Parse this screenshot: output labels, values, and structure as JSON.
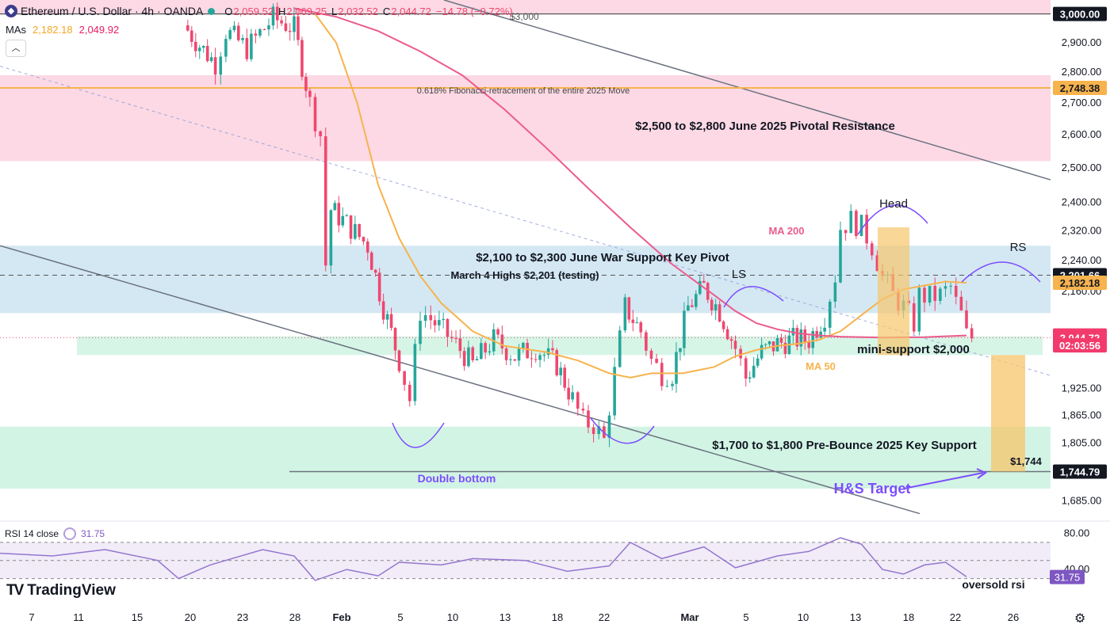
{
  "header": {
    "symbol": "Ethereum / U.S. Dollar · 4h · OANDA",
    "o_label": "O",
    "o_value": "2,059.52",
    "h_label": "H",
    "h_value": "2,069.25",
    "l_label": "L",
    "l_value": "2,032.52",
    "c_label": "C",
    "c_value": "2,044.72",
    "change": "−14.78 (−0.72%)"
  },
  "mas": {
    "label": "MAs",
    "ma50_value": "2,182.18",
    "ma200_value": "2,049.92"
  },
  "collapse_icon": "chevron-up-icon",
  "rsi_legend": {
    "label": "RSI 14 close",
    "value": "31.75"
  },
  "branding": {
    "logo_text": "TradingView"
  },
  "settings_icon": "gear-icon",
  "colors": {
    "up": "#26a69a",
    "down": "#ef476f",
    "ma50": "#f7b34d",
    "ma200": "#ec5b8d",
    "resistance_zone": "#fcd9e4",
    "war_zone": "#d4e8f3",
    "green_zone": "#d2f4e4",
    "annotation_purple": "#7c4dff",
    "rsi": "#9575cd"
  },
  "chart_data": {
    "type": "candlestick",
    "title": "Ethereum / U.S. Dollar · 4h · OANDA",
    "y_axis": {
      "ticks": [
        "3,000.00",
        "2,900.00",
        "2,800.00",
        "2,700.00",
        "2,600.00",
        "2,500.00",
        "2,400.00",
        "2,320.00",
        "2,240.00",
        "2,160.00",
        "1,925.00",
        "1,865.00",
        "1,805.00",
        "1,685.00"
      ],
      "scale": "log",
      "range": [
        1650,
        3050
      ]
    },
    "x_axis": {
      "ticks": [
        "7",
        "11",
        "15",
        "20",
        "23",
        "28",
        "Feb",
        "5",
        "10",
        "13",
        "18",
        "22",
        "Mar",
        "5",
        "10",
        "13",
        "18",
        "22",
        "26"
      ]
    },
    "price_path": [
      [
        0.175,
        2960
      ],
      [
        0.19,
        2890
      ],
      [
        0.205,
        2830
      ],
      [
        0.215,
        2940
      ],
      [
        0.235,
        2880
      ],
      [
        0.26,
        2985
      ],
      [
        0.28,
        2950
      ],
      [
        0.295,
        2700
      ],
      [
        0.305,
        2600
      ],
      [
        0.31,
        2230
      ],
      [
        0.315,
        2380
      ],
      [
        0.33,
        2340
      ],
      [
        0.35,
        2280
      ],
      [
        0.365,
        2120
      ],
      [
        0.38,
        1990
      ],
      [
        0.39,
        1900
      ],
      [
        0.4,
        2110
      ],
      [
        0.41,
        2090
      ],
      [
        0.43,
        2040
      ],
      [
        0.45,
        1980
      ],
      [
        0.47,
        2040
      ],
      [
        0.49,
        2000
      ],
      [
        0.51,
        2020
      ],
      [
        0.53,
        1980
      ],
      [
        0.545,
        1900
      ],
      [
        0.555,
        1850
      ],
      [
        0.565,
        1845
      ],
      [
        0.575,
        1810
      ],
      [
        0.585,
        1960
      ],
      [
        0.595,
        2120
      ],
      [
        0.61,
        2060
      ],
      [
        0.62,
        1990
      ],
      [
        0.63,
        1960
      ],
      [
        0.64,
        1960
      ],
      [
        0.655,
        2120
      ],
      [
        0.67,
        2170
      ],
      [
        0.685,
        2110
      ],
      [
        0.7,
        2020
      ],
      [
        0.71,
        1950
      ],
      [
        0.725,
        2010
      ],
      [
        0.74,
        2030
      ],
      [
        0.755,
        2040
      ],
      [
        0.77,
        2040
      ],
      [
        0.785,
        2100
      ],
      [
        0.795,
        2200
      ],
      [
        0.8,
        2330
      ],
      [
        0.81,
        2350
      ],
      [
        0.82,
        2330
      ],
      [
        0.83,
        2280
      ],
      [
        0.84,
        2200
      ],
      [
        0.85,
        2150
      ],
      [
        0.86,
        2120
      ],
      [
        0.87,
        2080
      ],
      [
        0.875,
        2150
      ],
      [
        0.885,
        2145
      ],
      [
        0.895,
        2150
      ],
      [
        0.905,
        2170
      ],
      [
        0.91,
        2130
      ],
      [
        0.915,
        2100
      ],
      [
        0.92,
        2050
      ],
      [
        0.925,
        2044.72
      ]
    ],
    "moving_averages": [
      {
        "name": "MA 50",
        "value": "2,182.18",
        "points": [
          [
            0.3,
            3000
          ],
          [
            0.32,
            2900
          ],
          [
            0.34,
            2700
          ],
          [
            0.36,
            2450
          ],
          [
            0.38,
            2300
          ],
          [
            0.4,
            2200
          ],
          [
            0.42,
            2130
          ],
          [
            0.45,
            2060
          ],
          [
            0.48,
            2025
          ],
          [
            0.52,
            2010
          ],
          [
            0.55,
            1990
          ],
          [
            0.58,
            1960
          ],
          [
            0.6,
            1950
          ],
          [
            0.62,
            1960
          ],
          [
            0.65,
            1960
          ],
          [
            0.68,
            1975
          ],
          [
            0.7,
            2000
          ],
          [
            0.72,
            2015
          ],
          [
            0.74,
            2025
          ],
          [
            0.76,
            2030
          ],
          [
            0.78,
            2040
          ],
          [
            0.8,
            2060
          ],
          [
            0.82,
            2100
          ],
          [
            0.84,
            2140
          ],
          [
            0.86,
            2165
          ],
          [
            0.88,
            2175
          ],
          [
            0.9,
            2185
          ],
          [
            0.92,
            2182
          ]
        ]
      },
      {
        "name": "MA 200",
        "value": "2,049.92",
        "points": [
          [
            0.28,
            3020
          ],
          [
            0.32,
            2990
          ],
          [
            0.36,
            2940
          ],
          [
            0.4,
            2870
          ],
          [
            0.44,
            2790
          ],
          [
            0.48,
            2680
          ],
          [
            0.52,
            2560
          ],
          [
            0.56,
            2440
          ],
          [
            0.6,
            2330
          ],
          [
            0.64,
            2230
          ],
          [
            0.68,
            2150
          ],
          [
            0.7,
            2110
          ],
          [
            0.72,
            2080
          ],
          [
            0.74,
            2065
          ],
          [
            0.76,
            2055
          ],
          [
            0.78,
            2050
          ],
          [
            0.8,
            2047
          ],
          [
            0.84,
            2045
          ],
          [
            0.88,
            2046
          ],
          [
            0.9,
            2048
          ],
          [
            0.92,
            2050
          ]
        ]
      }
    ],
    "price_labels": [
      {
        "text": "3,000.00",
        "value": 3000,
        "style": "dark"
      },
      {
        "text": "2,748.38",
        "value": 2748.38,
        "style": "orange"
      },
      {
        "text": "2,201.66",
        "value": 2201.66,
        "style": "dark"
      },
      {
        "text": "2,182.18",
        "value": 2182.18,
        "style": "orange"
      },
      {
        "text": "2,049.92",
        "value": 2049.92,
        "style": "pink"
      },
      {
        "text": "2,044.72",
        "value": 2044.72,
        "style": "pink"
      },
      {
        "text": "02:03:56",
        "value": 2026,
        "style": "pink"
      },
      {
        "text": "1,744.79",
        "value": 1744.79,
        "style": "dark"
      }
    ],
    "zones": [
      {
        "label": "$2,500 to $2,800 June 2025 Pivotal Resistance",
        "low": 2520,
        "high": 2790
      },
      {
        "label": "$2,100 to $2,300 June War Support Key Pivot",
        "low": 2105,
        "high": 2280
      },
      {
        "label": "$1,700 to $1,800 Pre-Bounce 2025 Key Support",
        "low": 1710,
        "high": 1840
      },
      {
        "label": "mini-support $2,000",
        "low": 2003,
        "high": 2048
      }
    ],
    "levels": [
      {
        "label": "0.618% Fibonacci-retracement of the entire 2025 Move",
        "value": 2748.38
      },
      {
        "label": "March 4 Highs $2,201 (testing)",
        "value": 2201.66
      },
      {
        "label": "$3,000",
        "value": 3000
      },
      {
        "label": "$1,744",
        "value": 1744.79
      }
    ],
    "annotations": [
      "MA 200",
      "MA 50",
      "LS",
      "Head",
      "RS",
      "Double bottom",
      "H&S Target",
      "oversold rsi"
    ],
    "rsi": {
      "length": 14,
      "value": 31.75,
      "levels": [
        70,
        50,
        30
      ],
      "ticks": [
        "80.00",
        "40.00"
      ],
      "points": [
        [
          0.0,
          58
        ],
        [
          0.05,
          55
        ],
        [
          0.1,
          62
        ],
        [
          0.15,
          50
        ],
        [
          0.17,
          30
        ],
        [
          0.2,
          45
        ],
        [
          0.25,
          62
        ],
        [
          0.28,
          55
        ],
        [
          0.3,
          28
        ],
        [
          0.33,
          40
        ],
        [
          0.36,
          33
        ],
        [
          0.38,
          48
        ],
        [
          0.42,
          45
        ],
        [
          0.45,
          52
        ],
        [
          0.5,
          50
        ],
        [
          0.54,
          38
        ],
        [
          0.58,
          44
        ],
        [
          0.6,
          70
        ],
        [
          0.63,
          52
        ],
        [
          0.67,
          65
        ],
        [
          0.7,
          42
        ],
        [
          0.74,
          55
        ],
        [
          0.77,
          60
        ],
        [
          0.8,
          75
        ],
        [
          0.82,
          68
        ],
        [
          0.84,
          40
        ],
        [
          0.86,
          35
        ],
        [
          0.88,
          45
        ],
        [
          0.9,
          48
        ],
        [
          0.92,
          32
        ]
      ]
    }
  }
}
